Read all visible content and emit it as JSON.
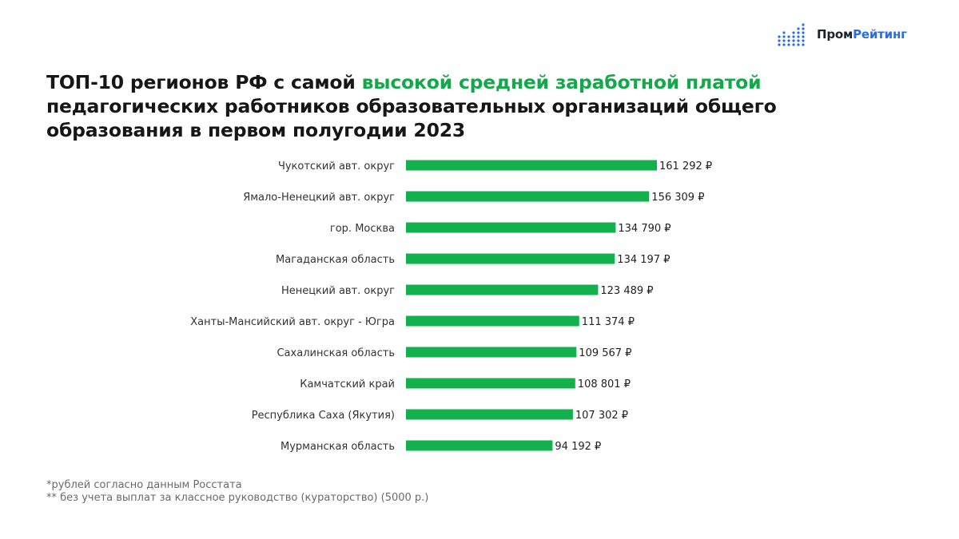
{
  "logo": {
    "text_part1": "Пром",
    "text_part2": "Рейтинг",
    "color_dark": "#1d2230",
    "color_accent": "#2a6de0"
  },
  "title": {
    "part1": "ТОП-10 регионов РФ с самой ",
    "highlight": "высокой средней заработной платой",
    "part2": " педагогических работников  образовательных организаций общего образования в первом полугодии 2023",
    "highlight_color": "#13a84a"
  },
  "chart_data": {
    "type": "bar",
    "orientation": "horizontal",
    "bar_color": "#13b04e",
    "categories": [
      "Чукотский авт. округ",
      "Ямало-Ненецкий авт. округ",
      "гор. Москва",
      "Магаданская область",
      "Ненецкий авт. округ",
      "Ханты-Мансийский авт. округ - Югра",
      "Сахалинская область",
      "Камчатский край",
      "Республика Саха (Якутия)",
      "Мурманская область"
    ],
    "values": [
      161292,
      156309,
      134790,
      134197,
      123489,
      111374,
      109567,
      108801,
      107302,
      94192
    ],
    "value_labels": [
      "161 292 ₽",
      "156 309 ₽",
      "134 790 ₽",
      "134 197 ₽",
      "123 489 ₽",
      "111 374 ₽",
      "109 567 ₽",
      "108 801 ₽",
      "107 302 ₽",
      "94 192 ₽"
    ],
    "xlim": [
      0,
      161292
    ],
    "grid": false,
    "legend": "none"
  },
  "footnotes": [
    "*рублей согласно данным Росстата",
    "** без учета выплат за классное руководство (кураторство) (5000 р.)"
  ]
}
